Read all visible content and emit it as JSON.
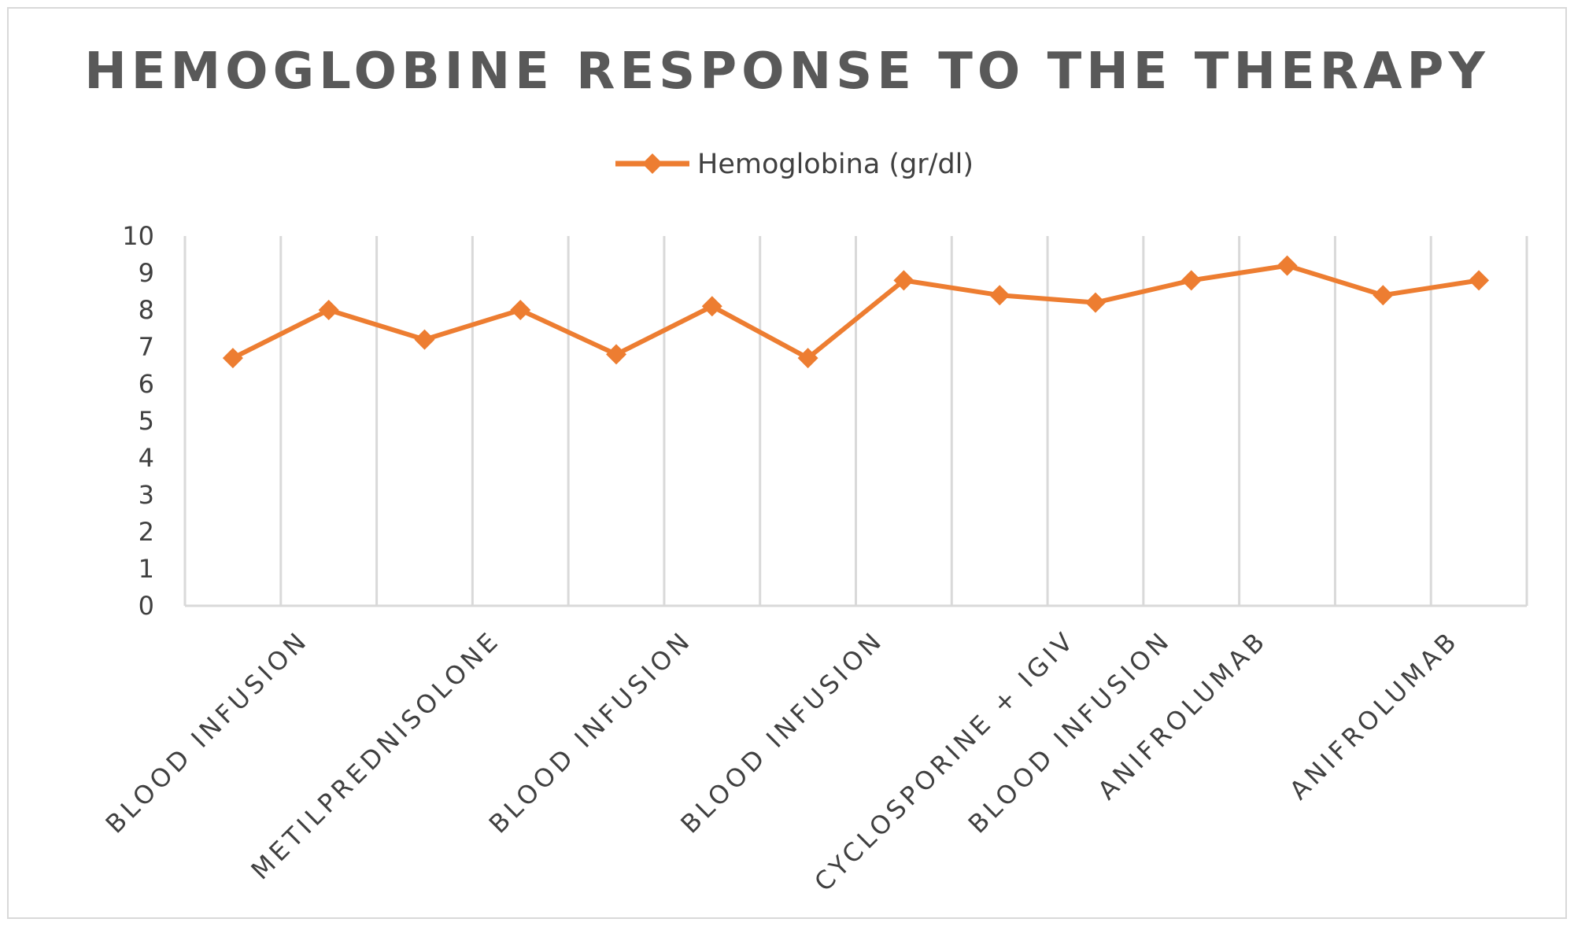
{
  "chart_data": {
    "type": "line",
    "title": "HEMOGLOBINE RESPONSE TO THE THERAPY",
    "ylim": [
      0,
      10
    ],
    "yticks": [
      0,
      1,
      2,
      3,
      4,
      5,
      6,
      7,
      8,
      9,
      10
    ],
    "grid": "vertical",
    "legend_position": "top",
    "categories": [
      "BLOOD INFUSION",
      "",
      "METILPREDNISOLONE",
      "",
      "BLOOD INFUSION",
      "",
      "BLOOD INFUSION",
      "",
      "CYCLOSPORINE + IGIV",
      "BLOOD INFUSION",
      "ANIFROLUMAB",
      "",
      "ANIFROLUMAB",
      ""
    ],
    "series": [
      {
        "name": "Hemoglobina (gr/dl)",
        "color": "#ED7D31",
        "marker": "diamond",
        "values": [
          6.7,
          8.0,
          7.2,
          8.0,
          6.8,
          8.1,
          6.7,
          8.8,
          8.4,
          8.2,
          8.8,
          9.2,
          8.4,
          8.8
        ]
      }
    ]
  }
}
